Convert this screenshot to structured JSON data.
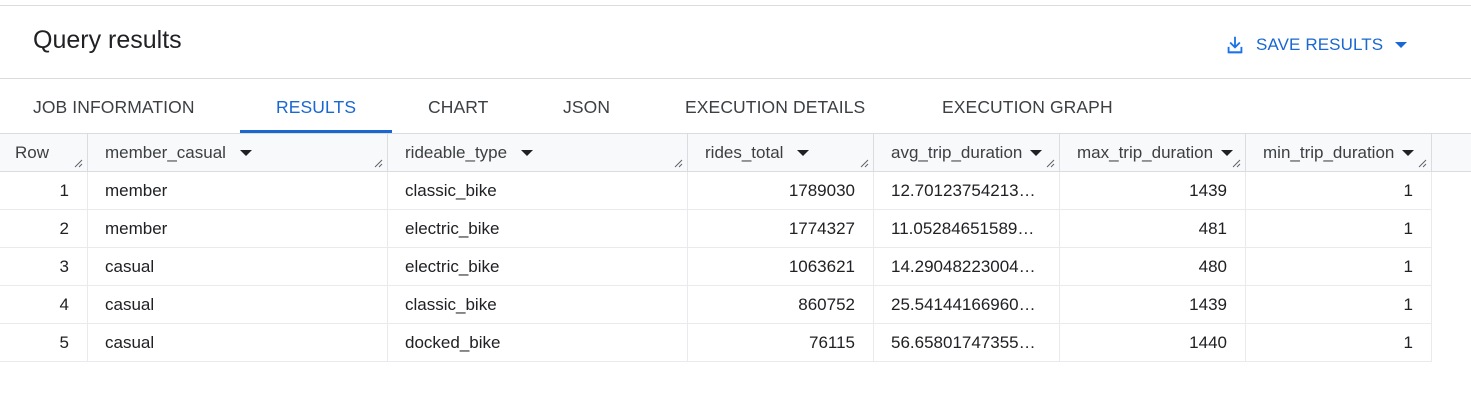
{
  "header": {
    "title": "Query results",
    "save_label": "SAVE RESULTS",
    "save_icon": "download-icon"
  },
  "tabs": [
    {
      "label": "JOB INFORMATION",
      "active": false
    },
    {
      "label": "RESULTS",
      "active": true
    },
    {
      "label": "CHART",
      "active": false
    },
    {
      "label": "JSON",
      "active": false
    },
    {
      "label": "EXECUTION DETAILS",
      "active": false
    },
    {
      "label": "EXECUTION GRAPH",
      "active": false
    }
  ],
  "table": {
    "columns": [
      "Row",
      "member_casual",
      "rideable_type",
      "rides_total",
      "avg_trip_duration",
      "max_trip_duration",
      "min_trip_duration"
    ],
    "rows": [
      [
        "1",
        "member",
        "classic_bike",
        "1789030",
        "12.70123754213…",
        "1439",
        "1"
      ],
      [
        "2",
        "member",
        "electric_bike",
        "1774327",
        "11.05284651589…",
        "481",
        "1"
      ],
      [
        "3",
        "casual",
        "electric_bike",
        "1063621",
        "14.29048223004…",
        "480",
        "1"
      ],
      [
        "4",
        "casual",
        "classic_bike",
        "860752",
        "25.54144166960…",
        "1439",
        "1"
      ],
      [
        "5",
        "casual",
        "docked_bike",
        "76115",
        "56.65801747355…",
        "1440",
        "1"
      ]
    ]
  },
  "colors": {
    "accent": "#1967d2",
    "border": "#dadce0",
    "header_bg": "#f8f9fa"
  }
}
